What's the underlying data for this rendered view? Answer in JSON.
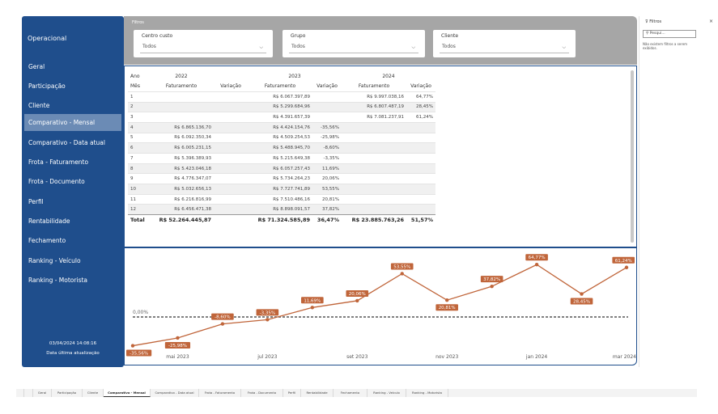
{
  "sidebar": {
    "title": "Operacional",
    "items": [
      {
        "label": "Geral",
        "active": false
      },
      {
        "label": "Participação",
        "active": false
      },
      {
        "label": "Cliente",
        "active": false
      },
      {
        "label": "Comparativo - Mensal",
        "active": true
      },
      {
        "label": "Comparativo - Data atual",
        "active": false
      },
      {
        "label": "Frota - Faturamento",
        "active": false
      },
      {
        "label": "Frota - Documento",
        "active": false
      },
      {
        "label": "Perfil",
        "active": false
      },
      {
        "label": "Rentabilidade",
        "active": false
      },
      {
        "label": "Fechamento",
        "active": false
      },
      {
        "label": "Ranking - Veículo",
        "active": false
      },
      {
        "label": "Ranking - Motorista",
        "active": false
      }
    ],
    "datetime": "03/04/2024 14:08:16",
    "datetime_label": "Data última atualização"
  },
  "filters": {
    "section_label": "Filtros",
    "centro_custo": {
      "label": "Centro custo",
      "value": "Todos"
    },
    "grupo": {
      "label": "Grupo",
      "value": "Todos"
    },
    "cliente": {
      "label": "Cliente",
      "value": "Todos"
    }
  },
  "table": {
    "ano_label": "Ano",
    "mes_label": "Mês",
    "years": [
      "2022",
      "2023",
      "2024"
    ],
    "col_faturamento": "Faturamento",
    "col_variacao": "Variação",
    "rows": [
      {
        "mes": "1",
        "f2022": "",
        "v2022": "",
        "f2023": "R$ 6.067.397,89",
        "v2023": "",
        "f2024": "R$ 9.997.038,16",
        "v2024": "64,77%"
      },
      {
        "mes": "2",
        "f2022": "",
        "v2022": "",
        "f2023": "R$ 5.299.684,96",
        "v2023": "",
        "f2024": "R$ 6.807.487,19",
        "v2024": "28,45%"
      },
      {
        "mes": "3",
        "f2022": "",
        "v2022": "",
        "f2023": "R$ 4.391.657,39",
        "v2023": "",
        "f2024": "R$ 7.081.237,91",
        "v2024": "61,24%"
      },
      {
        "mes": "4",
        "f2022": "R$ 6.865.136,70",
        "v2022": "",
        "f2023": "R$ 4.424.154,76",
        "v2023": "-35,56%",
        "f2024": "",
        "v2024": ""
      },
      {
        "mes": "5",
        "f2022": "R$ 6.092.350,34",
        "v2022": "",
        "f2023": "R$ 4.509.254,53",
        "v2023": "-25,98%",
        "f2024": "",
        "v2024": ""
      },
      {
        "mes": "6",
        "f2022": "R$ 6.005.231,15",
        "v2022": "",
        "f2023": "R$ 5.488.945,70",
        "v2023": "-8,60%",
        "f2024": "",
        "v2024": ""
      },
      {
        "mes": "7",
        "f2022": "R$ 5.396.389,93",
        "v2022": "",
        "f2023": "R$ 5.215.649,38",
        "v2023": "-3,35%",
        "f2024": "",
        "v2024": ""
      },
      {
        "mes": "8",
        "f2022": "R$ 5.423.046,18",
        "v2022": "",
        "f2023": "R$ 6.057.257,43",
        "v2023": "11,69%",
        "f2024": "",
        "v2024": ""
      },
      {
        "mes": "9",
        "f2022": "R$ 4.776.347,07",
        "v2022": "",
        "f2023": "R$ 5.734.264,23",
        "v2023": "20,06%",
        "f2024": "",
        "v2024": ""
      },
      {
        "mes": "10",
        "f2022": "R$ 5.032.656,13",
        "v2022": "",
        "f2023": "R$ 7.727.741,89",
        "v2023": "53,55%",
        "f2024": "",
        "v2024": ""
      },
      {
        "mes": "11",
        "f2022": "R$ 6.216.816,99",
        "v2022": "",
        "f2023": "R$ 7.510.486,16",
        "v2023": "20,81%",
        "f2024": "",
        "v2024": ""
      },
      {
        "mes": "12",
        "f2022": "R$ 6.456.471,38",
        "v2022": "",
        "f2023": "R$ 8.898.091,57",
        "v2023": "37,82%",
        "f2024": "",
        "v2024": ""
      }
    ],
    "total": {
      "label": "Total",
      "f2022": "R$ 52.264.445,87",
      "v2022": "",
      "f2023": "R$ 71.324.585,89",
      "v2023": "36,47%",
      "f2024": "R$ 23.885.763,26",
      "v2024": "51,57%"
    }
  },
  "chart_data": {
    "type": "line",
    "x": [
      "abr 2023",
      "mai 2023",
      "jun 2023",
      "jul 2023",
      "ago 2023",
      "set 2023",
      "out 2023",
      "nov 2023",
      "dez 2023",
      "jan 2024",
      "fev 2024",
      "mar 2024"
    ],
    "tick_labels": [
      "mai 2023",
      "jul 2023",
      "set 2023",
      "nov 2023",
      "jan 2024",
      "mar 2024"
    ],
    "values": [
      -35.56,
      -25.98,
      -8.6,
      -3.35,
      11.69,
      20.06,
      53.55,
      20.81,
      37.82,
      64.77,
      28.45,
      61.24
    ],
    "data_labels": [
      "-35,56%",
      "-25,98%",
      "-8,60%",
      "-3,35%",
      "11,69%",
      "20,06%",
      "53,55%",
      "20,81%",
      "37,82%",
      "64,77%",
      "28,45%",
      "61,24%"
    ],
    "label_position": [
      "below",
      "below",
      "above",
      "above",
      "above",
      "above",
      "above",
      "below",
      "above",
      "above",
      "below",
      "above"
    ],
    "reference_line": {
      "value": 0,
      "label": "0,00%",
      "style": "dashed"
    },
    "ylim": [
      -40,
      70
    ],
    "colors": {
      "line": "#c0653a",
      "label_bg": "#c0653a",
      "label_text": "#ffffff",
      "reference": "#555555"
    }
  },
  "filter_pane": {
    "title": "Filtros",
    "search_placeholder": "Pesqui...",
    "empty_text": "Não existem filtros a serem exibidos."
  },
  "tabs": [
    {
      "label": "Geral",
      "active": false
    },
    {
      "label": "Participação",
      "active": false
    },
    {
      "label": "Cliente",
      "active": false
    },
    {
      "label": "Comparativo - Mensal",
      "active": true
    },
    {
      "label": "Comparativo - Data atual",
      "active": false
    },
    {
      "label": "Frota - Faturamento",
      "active": false
    },
    {
      "label": "Frota - Documento",
      "active": false
    },
    {
      "label": "Perfil",
      "active": false
    },
    {
      "label": "Rentabilidade",
      "active": false
    },
    {
      "label": "Fechamento",
      "active": false
    },
    {
      "label": "Ranking - Veículo",
      "active": false
    },
    {
      "label": "Ranking - Motorista",
      "active": false
    }
  ]
}
